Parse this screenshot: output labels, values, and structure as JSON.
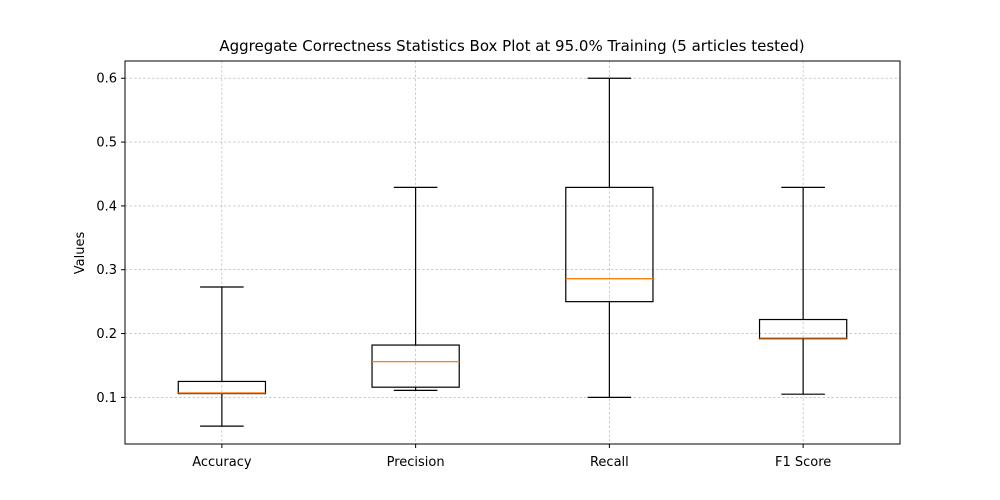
{
  "chart_data": {
    "type": "box",
    "title": "Aggregate Correctness Statistics Box Plot at 95.0% Training (5 articles tested)",
    "xlabel": "",
    "ylabel": "Values",
    "ylim": [
      0.027,
      0.627
    ],
    "yticks": [
      "0.1",
      "0.2",
      "0.3",
      "0.4",
      "0.5",
      "0.6"
    ],
    "grid": true,
    "median_color": "#ff7f0e",
    "categories": [
      "Accuracy",
      "Precision",
      "Recall",
      "F1 Score"
    ],
    "boxes": [
      {
        "whisker_low": 0.055,
        "q1": 0.106,
        "median": 0.107,
        "q3": 0.125,
        "whisker_high": 0.273
      },
      {
        "whisker_low": 0.111,
        "q1": 0.116,
        "median": 0.156,
        "q3": 0.182,
        "whisker_high": 0.429
      },
      {
        "whisker_low": 0.1,
        "q1": 0.25,
        "median": 0.286,
        "q3": 0.429,
        "whisker_high": 0.6
      },
      {
        "whisker_low": 0.105,
        "q1": 0.192,
        "median": 0.193,
        "q3": 0.222,
        "whisker_high": 0.429
      }
    ]
  }
}
